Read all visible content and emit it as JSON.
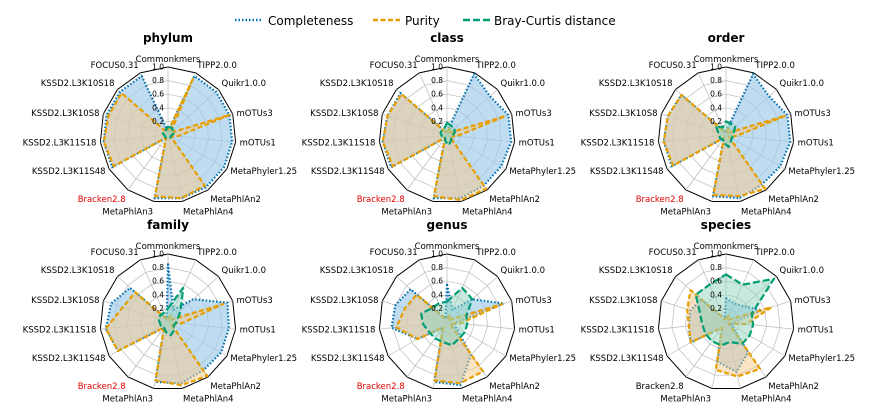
{
  "legend": [
    {
      "label": "Completeness",
      "color": "#0072b2",
      "dash": "dotted"
    },
    {
      "label": "Purity",
      "color": "#e69f00",
      "dash": "dashed"
    },
    {
      "label": "Bray-Curtis distance",
      "color": "#009e73",
      "dash": "dashed"
    }
  ],
  "chart_data": [
    {
      "type": "radar",
      "title": "phylum",
      "axes": [
        "Commonkmers",
        "TIPP2.0.0",
        "Quikr1.0.0",
        "mOTUs3",
        "mOTUs1",
        "MetaPhyler1.25",
        "MetaPhlAn2",
        "MetaPhlAn4",
        "MetaPhlAn3",
        "Bracken2.8",
        "KSSD2.L3K11S48",
        "KSSD2.L3K11S18",
        "KSSD2.L3K10S8",
        "KSSD2.L3K10S18",
        "FOCUS0.31"
      ],
      "highlighted_axes": [
        "Bracken2.8"
      ],
      "rlim": [
        0,
        1
      ],
      "rticks": [
        0.2,
        0.4,
        0.6,
        0.8,
        1.0
      ],
      "series": [
        {
          "name": "Completeness",
          "values": [
            0.05,
            0.95,
            0.95,
            0.95,
            0.95,
            0.95,
            0.95,
            0.95,
            0.95,
            0.05,
            0.95,
            0.95,
            0.95,
            0.95,
            0.95
          ]
        },
        {
          "name": "Purity",
          "values": [
            0.05,
            0.92,
            0.05,
            0.95,
            0.15,
            0.05,
            0.92,
            0.95,
            0.92,
            0.05,
            0.92,
            0.95,
            0.92,
            0.92,
            0.05
          ]
        },
        {
          "name": "Bray-Curtis distance",
          "values": [
            0.12,
            0.12,
            0.1,
            0.1,
            0.05,
            0.05,
            0.05,
            0.05,
            0.05,
            0.05,
            0.05,
            0.05,
            0.08,
            0.08,
            0.08
          ]
        }
      ]
    },
    {
      "type": "radar",
      "title": "class",
      "axes": [
        "Commonkmers",
        "TIPP2.0.0",
        "Quikr1.0.0",
        "mOTUs3",
        "mOTUs1",
        "MetaPhyler1.25",
        "MetaPhlAn2",
        "MetaPhlAn4",
        "MetaPhlAn3",
        "Bracken2.8",
        "KSSD2.L3K11S48",
        "KSSD2.L3K11S18",
        "KSSD2.L3K10S8",
        "KSSD2.L3K10S18",
        "FOCUS0.31"
      ],
      "highlighted_axes": [
        "Bracken2.8"
      ],
      "rlim": [
        0,
        1
      ],
      "rticks": [
        0.2,
        0.4,
        0.6,
        0.8,
        1.0
      ],
      "series": [
        {
          "name": "Completeness",
          "values": [
            0.05,
            0.98,
            0.85,
            0.95,
            0.95,
            0.92,
            0.92,
            0.95,
            0.95,
            0.05,
            0.95,
            0.95,
            0.92,
            0.92,
            0.05
          ]
        },
        {
          "name": "Purity",
          "values": [
            0.05,
            0.1,
            0.05,
            0.9,
            0.15,
            0.05,
            0.98,
            0.98,
            0.92,
            0.05,
            0.92,
            0.95,
            0.92,
            0.9,
            0.05
          ]
        },
        {
          "name": "Bray-Curtis distance",
          "values": [
            0.18,
            0.15,
            0.15,
            0.12,
            0.08,
            0.08,
            0.1,
            0.15,
            0.1,
            0.05,
            0.08,
            0.08,
            0.1,
            0.1,
            0.1
          ]
        }
      ]
    },
    {
      "type": "radar",
      "title": "order",
      "axes": [
        "Commonkmers",
        "TIPP2.0.0",
        "Quikr1.0.0",
        "mOTUs3",
        "mOTUs1",
        "MetaPhyler1.25",
        "MetaPhlAn2",
        "MetaPhlAn4",
        "MetaPhlAn3",
        "Bracken2.8",
        "KSSD2.L3K11S48",
        "KSSD2.L3K11S18",
        "KSSD2.L3K10S8",
        "KSSD2.L3K10S18",
        "FOCUS0.31"
      ],
      "highlighted_axes": [
        "Bracken2.8"
      ],
      "rlim": [
        0,
        1
      ],
      "rticks": [
        0.2,
        0.4,
        0.6,
        0.8,
        1.0
      ],
      "series": [
        {
          "name": "Completeness",
          "values": [
            0.05,
            0.98,
            0.85,
            0.95,
            0.95,
            0.92,
            0.9,
            0.95,
            0.92,
            0.05,
            0.92,
            0.92,
            0.9,
            0.88,
            0.05
          ]
        },
        {
          "name": "Purity",
          "values": [
            0.05,
            0.1,
            0.05,
            0.92,
            0.15,
            0.05,
            0.98,
            0.92,
            0.9,
            0.05,
            0.9,
            0.92,
            0.9,
            0.88,
            0.05
          ]
        },
        {
          "name": "Bray-Curtis distance",
          "values": [
            0.2,
            0.18,
            0.18,
            0.12,
            0.1,
            0.1,
            0.12,
            0.18,
            0.12,
            0.08,
            0.1,
            0.1,
            0.12,
            0.2,
            0.12
          ]
        }
      ]
    },
    {
      "type": "radar",
      "title": "family",
      "axes": [
        "Commonkmers",
        "TIPP2.0.0",
        "Quikr1.0.0",
        "mOTUs3",
        "mOTUs1",
        "MetaPhyler1.25",
        "MetaPhlAn2",
        "MetaPhlAn4",
        "MetaPhlAn3",
        "Bracken2.8",
        "KSSD2.L3K11S48",
        "KSSD2.L3K11S18",
        "KSSD2.L3K10S8",
        "KSSD2.L3K10S18",
        "FOCUS0.31"
      ],
      "highlighted_axes": [
        "Bracken2.8"
      ],
      "rlim": [
        0,
        1
      ],
      "rticks": [
        0.2,
        0.4,
        0.6,
        0.8,
        1.0
      ],
      "series": [
        {
          "name": "Completeness",
          "values": [
            0.85,
            0.2,
            0.5,
            0.92,
            0.9,
            0.9,
            0.88,
            0.92,
            0.9,
            0.1,
            0.85,
            0.92,
            0.88,
            0.75,
            0.05
          ]
        },
        {
          "name": "Purity",
          "values": [
            0.05,
            0.1,
            0.05,
            0.85,
            0.2,
            0.05,
            0.98,
            0.95,
            0.88,
            0.1,
            0.85,
            0.92,
            0.7,
            0.65,
            0.05
          ]
        },
        {
          "name": "Bray-Curtis distance",
          "values": [
            0.2,
            0.55,
            0.25,
            0.15,
            0.12,
            0.1,
            0.15,
            0.2,
            0.15,
            0.1,
            0.12,
            0.12,
            0.15,
            0.15,
            0.15
          ]
        }
      ]
    },
    {
      "type": "radar",
      "title": "genus",
      "axes": [
        "Commonkmers",
        "TIPP2.0.0",
        "Quikr1.0.0",
        "mOTUs3",
        "mOTUs1",
        "MetaPhyler1.25",
        "MetaPhlAn2",
        "MetaPhlAn4",
        "MetaPhlAn3",
        "Bracken2.8",
        "KSSD2.L3K11S48",
        "KSSD2.L3K11S18",
        "KSSD2.L3K10S8",
        "KSSD2.L3K10S18",
        "FOCUS0.31"
      ],
      "highlighted_axes": [
        "Bracken2.8"
      ],
      "rlim": [
        0,
        1
      ],
      "rticks": [
        0.2,
        0.4,
        0.6,
        0.8,
        1.0
      ],
      "series": [
        {
          "name": "Completeness",
          "values": [
            0.55,
            0.2,
            0.5,
            0.88,
            0.12,
            0.15,
            0.6,
            0.95,
            0.9,
            0.1,
            0.5,
            0.82,
            0.8,
            0.72,
            0.05
          ]
        },
        {
          "name": "Purity",
          "values": [
            0.05,
            0.1,
            0.05,
            0.85,
            0.2,
            0.05,
            0.9,
            0.92,
            0.88,
            0.1,
            0.5,
            0.75,
            0.65,
            0.6,
            0.05
          ]
        },
        {
          "name": "Bray-Curtis distance",
          "values": [
            0.3,
            0.55,
            0.5,
            0.3,
            0.3,
            0.3,
            0.3,
            0.35,
            0.3,
            0.3,
            0.3,
            0.35,
            0.4,
            0.3,
            0.3
          ]
        }
      ]
    },
    {
      "type": "radar",
      "title": "species",
      "axes": [
        "Commonkmers",
        "TIPP2.0.0",
        "Quikr1.0.0",
        "mOTUs3",
        "mOTUs1",
        "MetaPhyler1.25",
        "MetaPhlAn2",
        "MetaPhlAn4",
        "MetaPhlAn3",
        "Bracken2.8",
        "KSSD2.L3K11S48",
        "KSSD2.L3K11S18",
        "KSSD2.L3K10S8",
        "KSSD2.L3K10S18",
        "FOCUS0.31"
      ],
      "highlighted_axes": [],
      "rlim": [
        0,
        1
      ],
      "rticks": [
        0.2,
        0.4,
        0.6,
        0.8,
        1.0
      ],
      "series": [
        {
          "name": "Completeness",
          "values": [
            0.35,
            0.3,
            0.35,
            0.55,
            0.1,
            0.1,
            0.55,
            0.75,
            0.6,
            0.1,
            0.6,
            0.55,
            0.55,
            0.5,
            0.05
          ]
        },
        {
          "name": "Purity",
          "values": [
            0.05,
            0.1,
            0.05,
            0.7,
            0.3,
            0.05,
            0.85,
            0.82,
            0.72,
            0.1,
            0.6,
            0.55,
            0.6,
            0.7,
            0.05
          ]
        },
        {
          "name": "Bray-Curtis distance",
          "values": [
            0.7,
            0.6,
            0.95,
            0.4,
            0.4,
            0.4,
            0.4,
            0.3,
            0.35,
            0.35,
            0.35,
            0.35,
            0.4,
            0.6,
            0.6
          ]
        }
      ]
    }
  ]
}
